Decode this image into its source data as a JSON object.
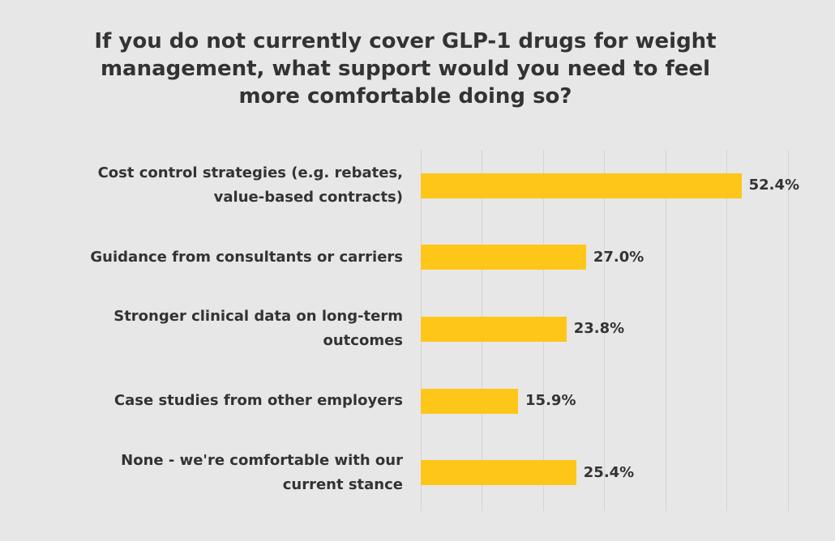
{
  "chart_data": {
    "type": "bar",
    "orientation": "horizontal",
    "title": "If you do not currently cover GLP-1 drugs for weight management, what support would you need to feel more comfortable doing so?",
    "categories": [
      "Cost control strategies (e.g. rebates, value-based contracts)",
      "Guidance from consultants or carriers",
      "Stronger clinical data on long-term outcomes",
      "Case studies from other employers",
      "None - we're comfortable with our current stance"
    ],
    "values": [
      52.4,
      27.0,
      23.8,
      15.9,
      25.4
    ],
    "value_labels": [
      "52.4%",
      "27.0%",
      "23.8%",
      "15.9%",
      "25.4%"
    ],
    "color": "#ffc61a",
    "xlim": [
      0,
      60
    ],
    "xticks": [
      0,
      10,
      20,
      30,
      40,
      50,
      60
    ],
    "grid": true
  }
}
